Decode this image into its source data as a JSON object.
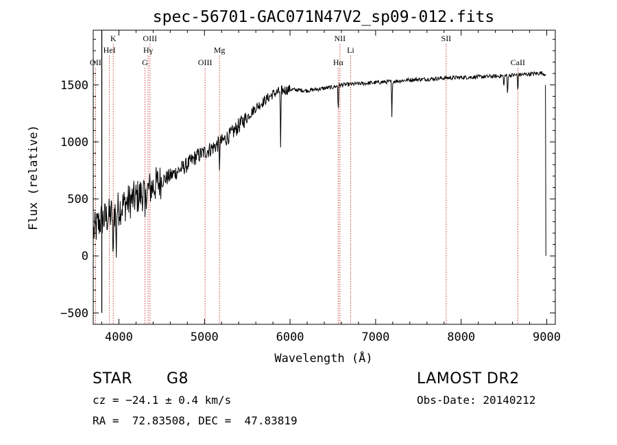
{
  "chart_data": {
    "type": "line",
    "title": "spec-56701-GAC071N47V2_sp09-012.fits",
    "xlabel": "Wavelength (Å)",
    "ylabel": "Flux (relative)",
    "xlim": [
      3700,
      9100
    ],
    "ylim": [
      -600,
      1980
    ],
    "x_ticks": [
      4000,
      5000,
      6000,
      7000,
      8000,
      9000
    ],
    "y_ticks": [
      -500,
      0,
      500,
      1000,
      1500
    ],
    "grid": false,
    "spectrum_anchors": {
      "x": [
        3700,
        3760,
        3800,
        3850,
        3900,
        3950,
        4000,
        4100,
        4200,
        4300,
        4400,
        4500,
        4600,
        4700,
        4800,
        4900,
        5000,
        5100,
        5200,
        5300,
        5400,
        5500,
        5600,
        5700,
        5800,
        5900,
        6000,
        6200,
        6400,
        6500,
        6600,
        6800,
        7000,
        7200,
        7400,
        7600,
        7800,
        8000,
        8200,
        8400,
        8600,
        8800,
        8950,
        8990
      ],
      "y": [
        200,
        280,
        320,
        330,
        360,
        390,
        420,
        470,
        510,
        560,
        610,
        660,
        700,
        750,
        800,
        870,
        910,
        950,
        1000,
        1060,
        1140,
        1220,
        1300,
        1360,
        1420,
        1450,
        1460,
        1450,
        1470,
        1480,
        1500,
        1510,
        1520,
        1530,
        1545,
        1550,
        1560,
        1565,
        1570,
        1575,
        1585,
        1595,
        1605,
        1590
      ]
    },
    "absorption_features": [
      {
        "x": 3932,
        "depth": 600
      },
      {
        "x": 3968,
        "depth": 450
      },
      {
        "x": 4305,
        "depth": 250
      },
      {
        "x": 5175,
        "depth": 200
      },
      {
        "x": 5890,
        "depth": 500
      },
      {
        "x": 6563,
        "depth": 250
      },
      {
        "x": 7190,
        "depth": 320
      },
      {
        "x": 8498,
        "depth": 120
      },
      {
        "x": 8542,
        "depth": 200
      },
      {
        "x": 8662,
        "depth": 170
      }
    ],
    "spectral_lines": [
      {
        "label": "OII",
        "x": 3727,
        "row": 2
      },
      {
        "label": "K",
        "x": 3934,
        "row": 0
      },
      {
        "label": "HeI",
        "x": 3889,
        "row": 1
      },
      {
        "label": "OIII",
        "x": 4363,
        "row": 0
      },
      {
        "label": "Hγ",
        "x": 4341,
        "row": 1
      },
      {
        "label": "G",
        "x": 4305,
        "row": 2
      },
      {
        "label": "Mg",
        "x": 5175,
        "row": 1
      },
      {
        "label": "OIII",
        "x": 5007,
        "row": 2
      },
      {
        "label": "NII",
        "x": 6583,
        "row": 0
      },
      {
        "label": "Li",
        "x": 6708,
        "row": 1
      },
      {
        "label": "Hα",
        "x": 6563,
        "row": 2
      },
      {
        "label": "SII",
        "x": 7825,
        "row": 0
      },
      {
        "label": "CaII",
        "x": 8662,
        "row": 2
      }
    ]
  },
  "info": {
    "class_label": "STAR",
    "subclass": "G8",
    "survey": "LAMOST DR2",
    "cz": "cz = −24.1 ± 0.4 km/s",
    "obs_date": "Obs-Date: 20140212",
    "radec": "RA =  72.83508, DEC =  47.83819"
  },
  "colors": {
    "spectrum": "#000000",
    "line_marker": "#c0392b",
    "text": "#000000"
  }
}
